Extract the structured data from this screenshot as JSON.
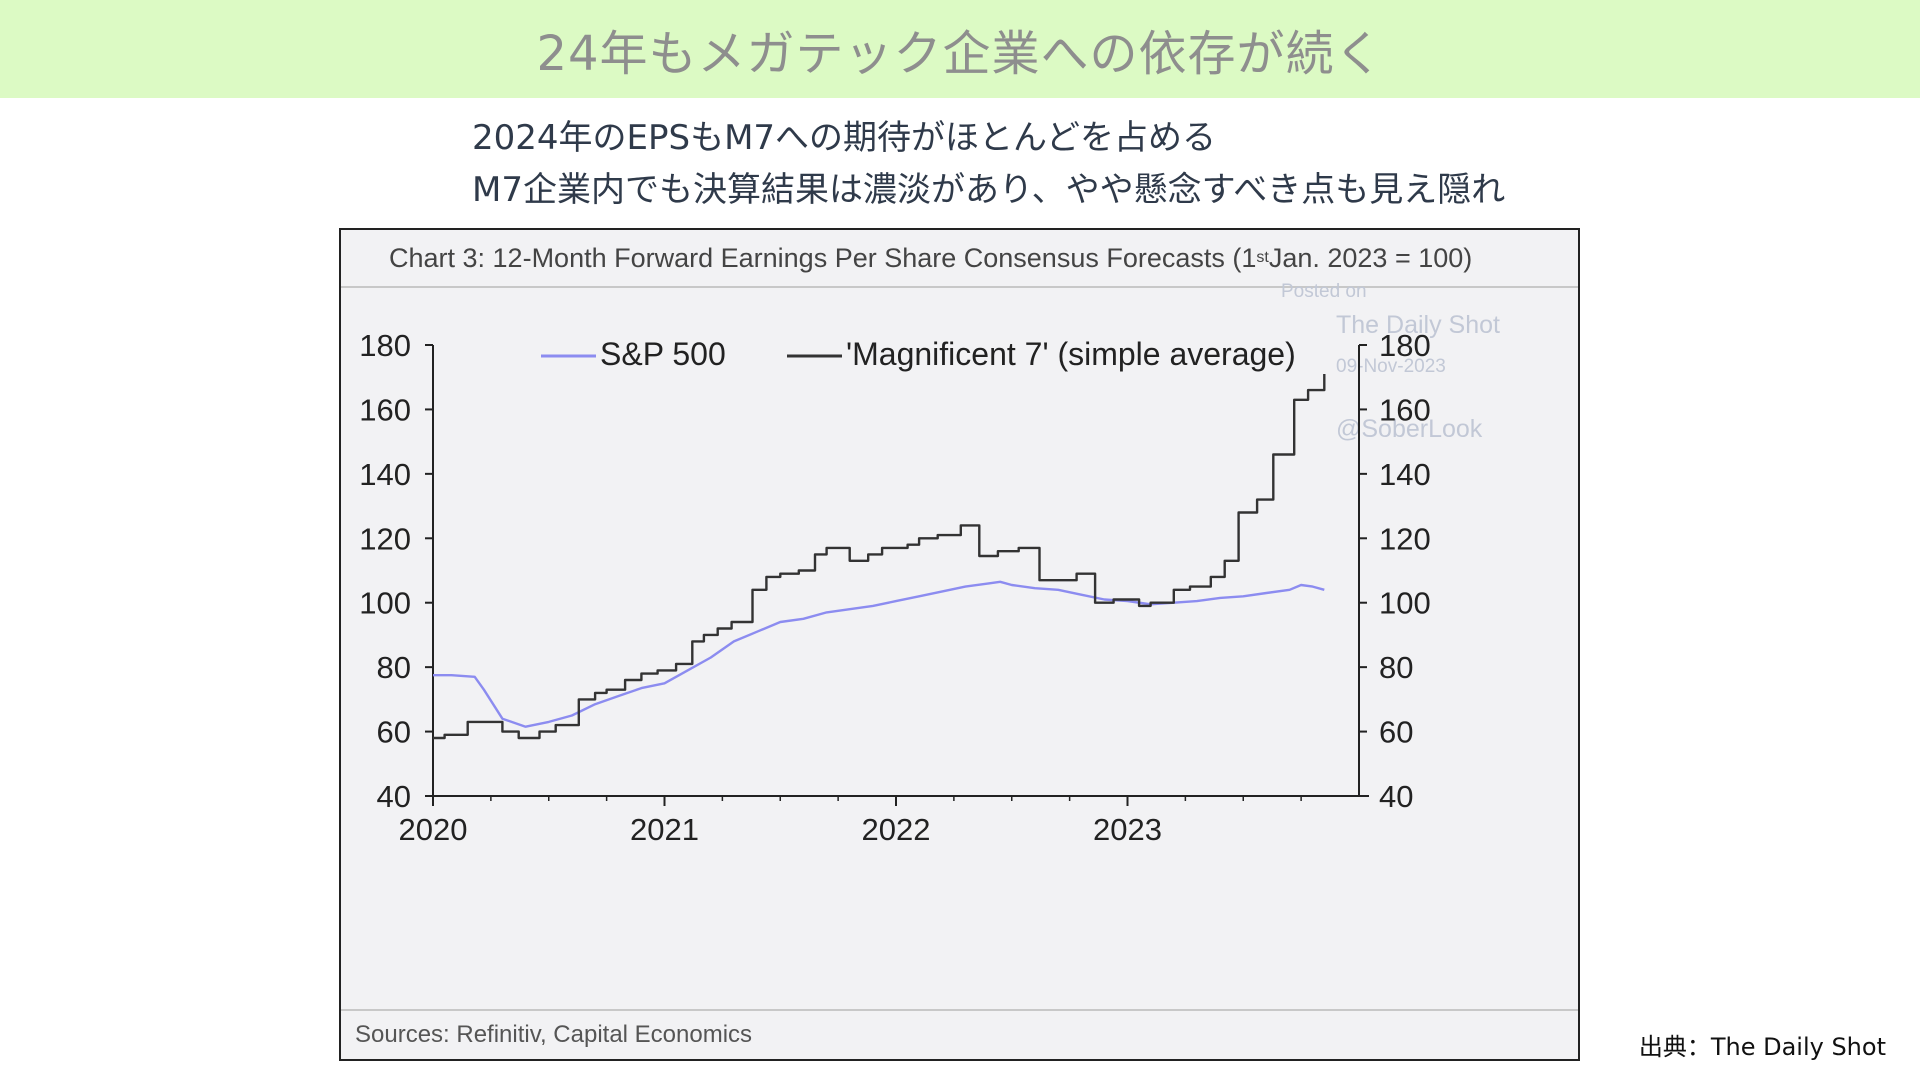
{
  "banner": {
    "title": "24年もメガテック企業への依存が続く"
  },
  "subtitle": {
    "line1": "2024年のEPSもM7への期待がほとんどを占める",
    "line2": "M7企業内でも決算結果は濃淡があり、やや懸念すべき点も見え隠れ"
  },
  "chart_data": {
    "type": "line",
    "title_prefix": "Chart 3: 12-Month Forward Earnings Per Share Consensus Forecasts (1",
    "title_sup": "st",
    "title_suffix": " Jan. 2023 = 100)",
    "sources": "Sources: Refinitiv, Capital Economics",
    "xlim": [
      2020.0,
      2024.0
    ],
    "ylim": [
      40,
      180
    ],
    "yticks": [
      40,
      60,
      80,
      100,
      120,
      140,
      160,
      180
    ],
    "xticks": [
      2020,
      2021,
      2022,
      2023
    ],
    "yticks_right": [
      40,
      60,
      80,
      100,
      120,
      140,
      160,
      180
    ],
    "legend_position": "top",
    "grid": false,
    "series": [
      {
        "name": "S&P 500",
        "color": "#8c8cf0",
        "x": [
          2020.0,
          2020.08,
          2020.18,
          2020.22,
          2020.3,
          2020.4,
          2020.5,
          2020.6,
          2020.7,
          2020.8,
          2020.9,
          2021.0,
          2021.1,
          2021.2,
          2021.3,
          2021.4,
          2021.5,
          2021.6,
          2021.7,
          2021.8,
          2021.9,
          2022.0,
          2022.1,
          2022.2,
          2022.3,
          2022.4,
          2022.45,
          2022.5,
          2022.6,
          2022.7,
          2022.8,
          2022.9,
          2023.0,
          2023.1,
          2023.2,
          2023.3,
          2023.4,
          2023.5,
          2023.6,
          2023.7,
          2023.75,
          2023.8,
          2023.85
        ],
        "y": [
          77.5,
          77.5,
          77,
          73,
          64,
          61.5,
          63,
          65,
          68.5,
          71,
          73.5,
          75,
          79,
          83,
          88,
          91,
          94,
          95,
          97,
          98,
          99,
          100.5,
          102,
          103.5,
          105,
          106,
          106.5,
          105.5,
          104.5,
          104,
          102.5,
          101,
          100.5,
          99.5,
          100,
          100.5,
          101.5,
          102,
          103,
          104,
          105.5,
          105,
          104
        ]
      },
      {
        "name": "'Magnificent 7' (simple average)",
        "color": "#333333",
        "x": [
          2020.0,
          2020.05,
          2020.15,
          2020.3,
          2020.37,
          2020.46,
          2020.53,
          2020.63,
          2020.7,
          2020.75,
          2020.83,
          2020.9,
          2020.97,
          2021.05,
          2021.12,
          2021.17,
          2021.23,
          2021.29,
          2021.38,
          2021.44,
          2021.5,
          2021.58,
          2021.65,
          2021.7,
          2021.8,
          2021.88,
          2021.94,
          2022.05,
          2022.1,
          2022.18,
          2022.28,
          2022.36,
          2022.44,
          2022.53,
          2022.62,
          2022.78,
          2022.86,
          2022.94,
          2023.05,
          2023.1,
          2023.2,
          2023.27,
          2023.36,
          2023.42,
          2023.48,
          2023.56,
          2023.63,
          2023.72,
          2023.78,
          2023.85
        ],
        "y": [
          58,
          59,
          63,
          60,
          58,
          60,
          62,
          70,
          72,
          73,
          76,
          78,
          79,
          81,
          88,
          90,
          92,
          94,
          104,
          108,
          109,
          110,
          115,
          117,
          113,
          115,
          117,
          118,
          120,
          121,
          124,
          114.5,
          116,
          117,
          107,
          109,
          100,
          101,
          99,
          100,
          104,
          105,
          108,
          113,
          128,
          132,
          146,
          163,
          166,
          171
        ]
      }
    ]
  },
  "watermark": {
    "posted_on": "Posted on",
    "outlet": "The Daily Shot",
    "date": "09-Nov-2023",
    "handle": "@SoberLook"
  },
  "footer": {
    "credit": "出典：The Daily Shot"
  }
}
